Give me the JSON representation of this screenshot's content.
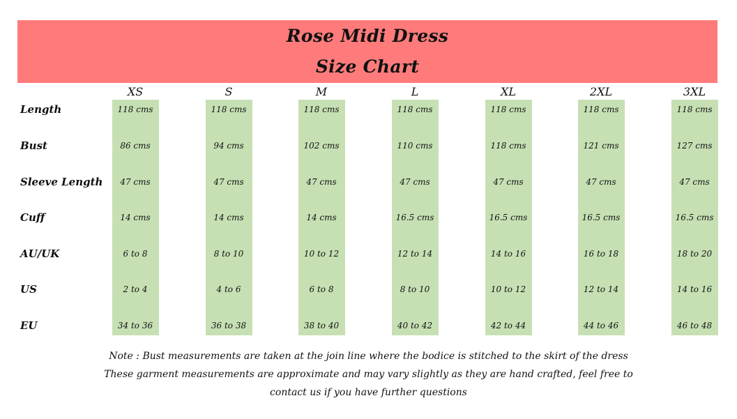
{
  "header": {
    "title": "Rose Midi Dress",
    "subtitle": "Size Chart",
    "background_color": "#ff7b7b"
  },
  "table": {
    "highlight_color": "#c6e0b4",
    "columns": [
      "XS",
      "S",
      "M",
      "L",
      "XL",
      "2XL",
      "3XL"
    ],
    "rows": [
      {
        "label": "Length",
        "values": [
          "118 cms",
          "118 cms",
          "118 cms",
          "118 cms",
          "118 cms",
          "118 cms",
          "118 cms"
        ]
      },
      {
        "label": "Bust",
        "values": [
          "86 cms",
          "94 cms",
          "102 cms",
          "110 cms",
          "118 cms",
          "121 cms",
          "127 cms"
        ]
      },
      {
        "label": "Sleeve Length",
        "values": [
          "47 cms",
          "47 cms",
          "47 cms",
          "47 cms",
          "47 cms",
          "47 cms",
          "47 cms"
        ]
      },
      {
        "label": "Cuff",
        "values": [
          "14 cms",
          "14 cms",
          "14 cms",
          "16.5 cms",
          "16.5 cms",
          "16.5 cms",
          "16.5 cms"
        ]
      },
      {
        "label": "AU/UK",
        "values": [
          "6 to 8",
          "8 to 10",
          "10 to 12",
          "12 to 14",
          "14 to 16",
          "16 to 18",
          "18 to 20"
        ]
      },
      {
        "label": "US",
        "values": [
          "2 to 4",
          "4 to 6",
          "6 to 8",
          "8 to 10",
          "10 to 12",
          "12 to 14",
          "14 to 16"
        ]
      },
      {
        "label": "EU",
        "values": [
          "34 to 36",
          "36 to 38",
          "38 to 40",
          "40 to 42",
          "42 to 44",
          "44 to 46",
          "46 to 48"
        ]
      }
    ]
  },
  "notes": {
    "line1": "Note : Bust measurements are taken at the join line where the bodice is stitched to the skirt of the dress",
    "line2": "These garment measurements are approximate and may vary slightly as they are hand crafted, feel free to",
    "line3": "contact us if you have further questions"
  }
}
